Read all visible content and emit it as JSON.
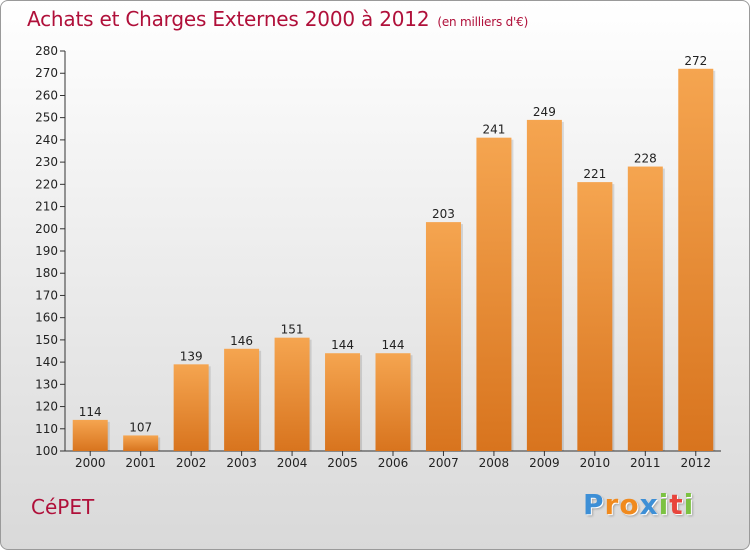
{
  "chart_data": {
    "type": "bar",
    "title": "Achats et Charges Externes 2000 à 2012",
    "subtitle": "(en milliers d'€)",
    "categories": [
      "2000",
      "2001",
      "2002",
      "2003",
      "2004",
      "2005",
      "2006",
      "2007",
      "2008",
      "2009",
      "2010",
      "2011",
      "2012"
    ],
    "values": [
      114,
      107,
      139,
      146,
      151,
      144,
      144,
      203,
      241,
      249,
      221,
      228,
      272
    ],
    "ylim": [
      100,
      280
    ],
    "yticks": [
      100,
      110,
      120,
      130,
      140,
      150,
      160,
      170,
      180,
      190,
      200,
      210,
      220,
      230,
      240,
      250,
      260,
      270,
      280
    ],
    "grid": false,
    "bar_color_top": "#f5a550",
    "bar_color_bottom": "#d8741e"
  },
  "footer": {
    "commune": "CéPET",
    "brand": [
      "P",
      "r",
      "o",
      "x",
      "i",
      "t",
      "i"
    ],
    "brand_colors": [
      "#3d8fd6",
      "#f08a1e",
      "#f08a1e",
      "#3d8fd6",
      "#7cc242",
      "#e8453c",
      "#7cc242"
    ]
  },
  "colors": {
    "title": "#b0103a",
    "axis": "#333333"
  }
}
